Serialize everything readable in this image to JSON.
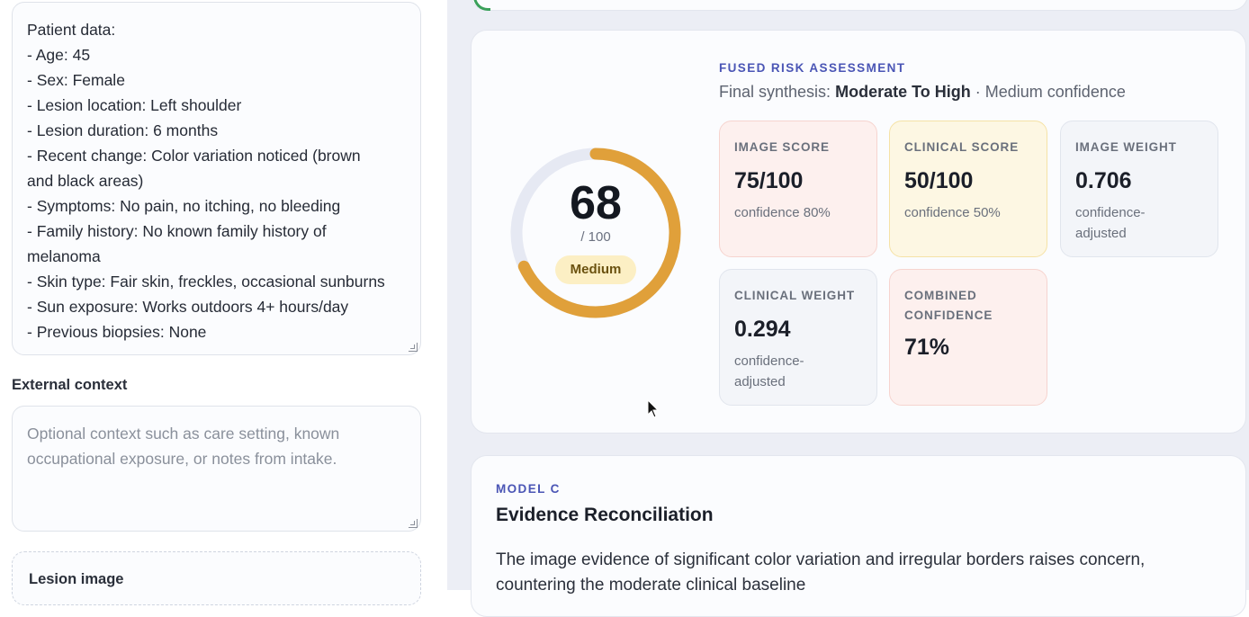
{
  "left": {
    "patient_lines": [
      "Patient data:",
      "- Age: 45",
      "- Sex: Female",
      "- Lesion location: Left shoulder",
      "- Lesion duration: 6 months",
      "- Recent change: Color variation noticed (brown and black areas)",
      "- Symptoms: No pain, no itching, no bleeding",
      "- Family history: No known family history of melanoma",
      "- Skin type: Fair skin, freckles, occasional sunburns",
      "- Sun exposure: Works outdoors 4+ hours/day",
      "- Previous biopsies: None"
    ],
    "external_context_label": "External context",
    "external_context_placeholder": "Optional context such as care setting, known occupational exposure, or notes from intake.",
    "lesion_image_label": "Lesion image"
  },
  "risk": {
    "eyebrow": "Fused risk assessment",
    "synthesis_prefix": "Final synthesis:",
    "synthesis_level": "Moderate To High",
    "synthesis_suffix": "· Medium confidence",
    "score": 68,
    "score_max": "/ 100",
    "score_badge": "Medium",
    "gauge_color": "#e0a03a",
    "gauge_track_color": "#e6e9f3",
    "metrics": [
      {
        "label": "Image score",
        "value": "75/100",
        "sub": "confidence 80%"
      },
      {
        "label": "Clinical score",
        "value": "50/100",
        "sub": "confidence 50%"
      },
      {
        "label": "Image weight",
        "value": "0.706",
        "sub": "confidence-adjusted"
      },
      {
        "label": "Clinical weight",
        "value": "0.294",
        "sub": "confidence-adjusted"
      },
      {
        "label": "Combined confidence",
        "value": "71%",
        "sub": ""
      }
    ]
  },
  "model": {
    "eyebrow": "Model C",
    "heading": "Evidence Reconciliation",
    "body": "The image evidence of significant color variation and irregular borders raises concern, countering the moderate clinical baseline"
  }
}
